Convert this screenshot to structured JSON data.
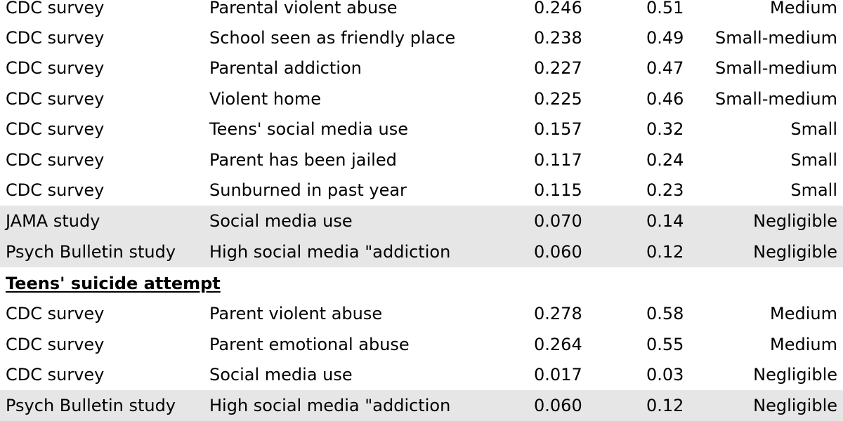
{
  "table": {
    "rows": [
      {
        "source": "CDC survey",
        "factor": "Parental violent abuse",
        "r": "0.246",
        "d": "0.51",
        "effect": "Medium",
        "shaded": false
      },
      {
        "source": "CDC survey",
        "factor": "School seen as friendly place",
        "r": "0.238",
        "d": "0.49",
        "effect": "Small-medium",
        "shaded": false
      },
      {
        "source": "CDC survey",
        "factor": "Parental addiction",
        "r": "0.227",
        "d": "0.47",
        "effect": "Small-medium",
        "shaded": false
      },
      {
        "source": "CDC survey",
        "factor": "Violent home",
        "r": "0.225",
        "d": "0.46",
        "effect": "Small-medium",
        "shaded": false
      },
      {
        "source": "CDC survey",
        "factor": "Teens' social media use",
        "r": "0.157",
        "d": "0.32",
        "effect": "Small",
        "shaded": false
      },
      {
        "source": "CDC survey",
        "factor": "Parent has been jailed",
        "r": "0.117",
        "d": "0.24",
        "effect": "Small",
        "shaded": false
      },
      {
        "source": "CDC survey",
        "factor": "Sunburned in past year",
        "r": "0.115",
        "d": "0.23",
        "effect": "Small",
        "shaded": false
      },
      {
        "source": "JAMA study",
        "factor": "Social media use",
        "r": "0.070",
        "d": "0.14",
        "effect": "Negligible",
        "shaded": true
      },
      {
        "source": "Psych Bulletin study",
        "factor": "High social media \"addiction",
        "r": "0.060",
        "d": "0.12",
        "effect": "Negligible",
        "shaded": true
      }
    ],
    "section": {
      "heading": "Teens' suicide attempt",
      "rows": [
        {
          "source": "CDC survey",
          "factor": "Parent violent abuse",
          "r": "0.278",
          "d": "0.58",
          "effect": "Medium",
          "shaded": false
        },
        {
          "source": "CDC survey",
          "factor": "Parent emotional abuse",
          "r": "0.264",
          "d": "0.55",
          "effect": "Medium",
          "shaded": false
        },
        {
          "source": "CDC survey",
          "factor": "Social media use",
          "r": "0.017",
          "d": "0.03",
          "effect": "Negligible",
          "shaded": false
        },
        {
          "source": "Psych Bulletin study",
          "factor": "High social media \"addiction",
          "r": "0.060",
          "d": "0.12",
          "effect": "Negligible",
          "shaded": true
        }
      ]
    }
  }
}
